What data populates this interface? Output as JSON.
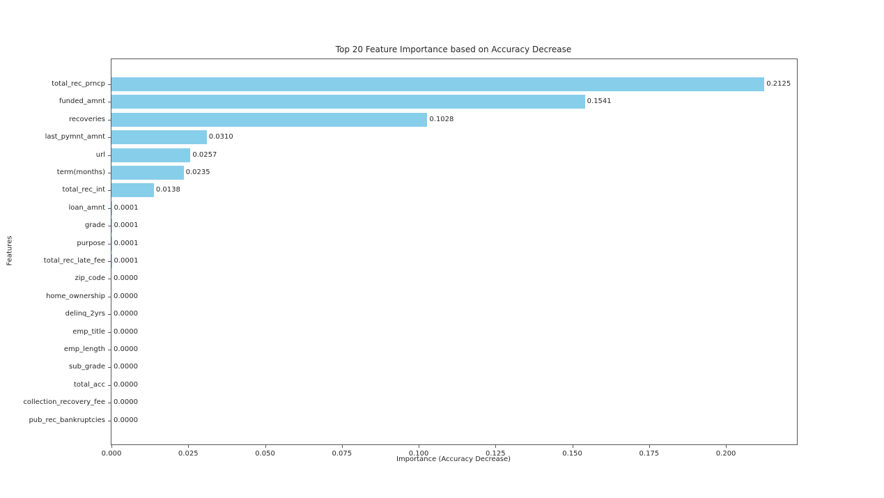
{
  "chart_data": {
    "type": "bar",
    "orientation": "horizontal",
    "title": "Top 20 Feature Importance based on Accuracy Decrease",
    "xlabel": "Importance (Accuracy Decrease)",
    "ylabel": "Features",
    "categories": [
      "total_rec_prncp",
      "funded_amnt",
      "recoveries",
      "last_pymnt_amnt",
      "url",
      "term(months)",
      "total_rec_int",
      "loan_amnt",
      "grade",
      "purpose",
      "total_rec_late_fee",
      "zip_code",
      "home_ownership",
      "delinq_2yrs",
      "emp_title",
      "emp_length",
      "sub_grade",
      "total_acc",
      "collection_recovery_fee",
      "pub_rec_bankruptcies"
    ],
    "values": [
      0.2125,
      0.1541,
      0.1028,
      0.031,
      0.0257,
      0.0235,
      0.0138,
      0.0001,
      0.0001,
      0.0001,
      0.0001,
      0.0,
      0.0,
      0.0,
      0.0,
      0.0,
      0.0,
      0.0,
      0.0,
      0.0
    ],
    "value_labels": [
      "0.2125",
      "0.1541",
      "0.1028",
      "0.0310",
      "0.0257",
      "0.0235",
      "0.0138",
      "0.0001",
      "0.0001",
      "0.0001",
      "0.0001",
      "0.0000",
      "0.0000",
      "0.0000",
      "0.0000",
      "0.0000",
      "0.0000",
      "0.0000",
      "0.0000",
      "0.0000"
    ],
    "x_ticks": [
      "0.000",
      "0.025",
      "0.050",
      "0.075",
      "0.100",
      "0.125",
      "0.150",
      "0.175",
      "0.200"
    ],
    "xlim": [
      0,
      0.2231
    ],
    "grid": false,
    "legend": null,
    "bar_color": "#87CEEB",
    "background_color": "#ffffff"
  }
}
